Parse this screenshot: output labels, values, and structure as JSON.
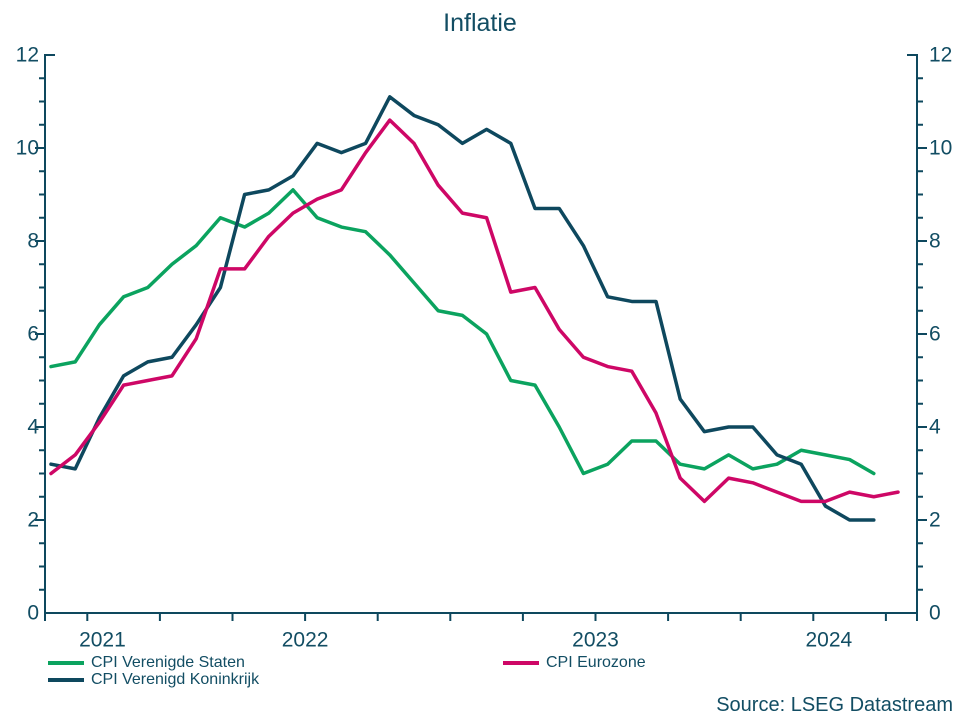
{
  "title": "Inflatie",
  "source": "Source: LSEG Datastream",
  "colors": {
    "us": "#0ba35f",
    "uk": "#0e485e",
    "ez": "#ce0766",
    "text": "#124d63",
    "axis": "#0e485e"
  },
  "legend": {
    "items": [
      {
        "key": "us",
        "label": "CPI Verenigde Staten"
      },
      {
        "key": "uk",
        "label": "CPI Verenigd Koninkrijk"
      },
      {
        "key": "ez",
        "label": "CPI Eurozone"
      }
    ]
  },
  "chart_data": {
    "type": "line",
    "title": "Inflatie",
    "xlabel": "",
    "ylabel": "",
    "ylim": [
      0,
      12
    ],
    "y_major_ticks": [
      0,
      2,
      4,
      6,
      8,
      10,
      12
    ],
    "y_minor_step": 0.5,
    "grid": false,
    "legend_position": "bottom",
    "x_year_labels": [
      "2021",
      "2022",
      "2023",
      "2024"
    ],
    "x": [
      "2021-08",
      "2021-09",
      "2021-10",
      "2021-11",
      "2021-12",
      "2022-01",
      "2022-02",
      "2022-03",
      "2022-04",
      "2022-05",
      "2022-06",
      "2022-07",
      "2022-08",
      "2022-09",
      "2022-10",
      "2022-11",
      "2022-12",
      "2023-01",
      "2023-02",
      "2023-03",
      "2023-04",
      "2023-05",
      "2023-06",
      "2023-07",
      "2023-08",
      "2023-09",
      "2023-10",
      "2023-11",
      "2023-12",
      "2024-01",
      "2024-02",
      "2024-03",
      "2024-04",
      "2024-05",
      "2024-06",
      "2024-07"
    ],
    "series": [
      {
        "name": "CPI Verenigde Staten",
        "color_key": "us",
        "values": [
          5.3,
          5.4,
          6.2,
          6.8,
          7.0,
          7.5,
          7.9,
          8.5,
          8.3,
          8.6,
          9.1,
          8.5,
          8.3,
          8.2,
          7.7,
          7.1,
          6.5,
          6.4,
          6.0,
          5.0,
          4.9,
          4.0,
          3.0,
          3.2,
          3.7,
          3.7,
          3.2,
          3.1,
          3.4,
          3.1,
          3.2,
          3.5,
          3.4,
          3.3,
          3.0,
          null
        ]
      },
      {
        "name": "CPI Verenigd Koninkrijk",
        "color_key": "uk",
        "values": [
          3.2,
          3.1,
          4.2,
          5.1,
          5.4,
          5.5,
          6.2,
          7.0,
          9.0,
          9.1,
          9.4,
          10.1,
          9.9,
          10.1,
          11.1,
          10.7,
          10.5,
          10.1,
          10.4,
          10.1,
          8.7,
          8.7,
          7.9,
          6.8,
          6.7,
          6.7,
          4.6,
          3.9,
          4.0,
          4.0,
          3.4,
          3.2,
          2.3,
          2.0,
          2.0,
          null
        ]
      },
      {
        "name": "CPI Eurozone",
        "color_key": "ez",
        "values": [
          3.0,
          3.4,
          4.1,
          4.9,
          5.0,
          5.1,
          5.9,
          7.4,
          7.4,
          8.1,
          8.6,
          8.9,
          9.1,
          9.9,
          10.6,
          10.1,
          9.2,
          8.6,
          8.5,
          6.9,
          7.0,
          6.1,
          5.5,
          5.3,
          5.2,
          4.3,
          2.9,
          2.4,
          2.9,
          2.8,
          2.6,
          2.4,
          2.4,
          2.6,
          2.5,
          2.6
        ]
      }
    ]
  }
}
